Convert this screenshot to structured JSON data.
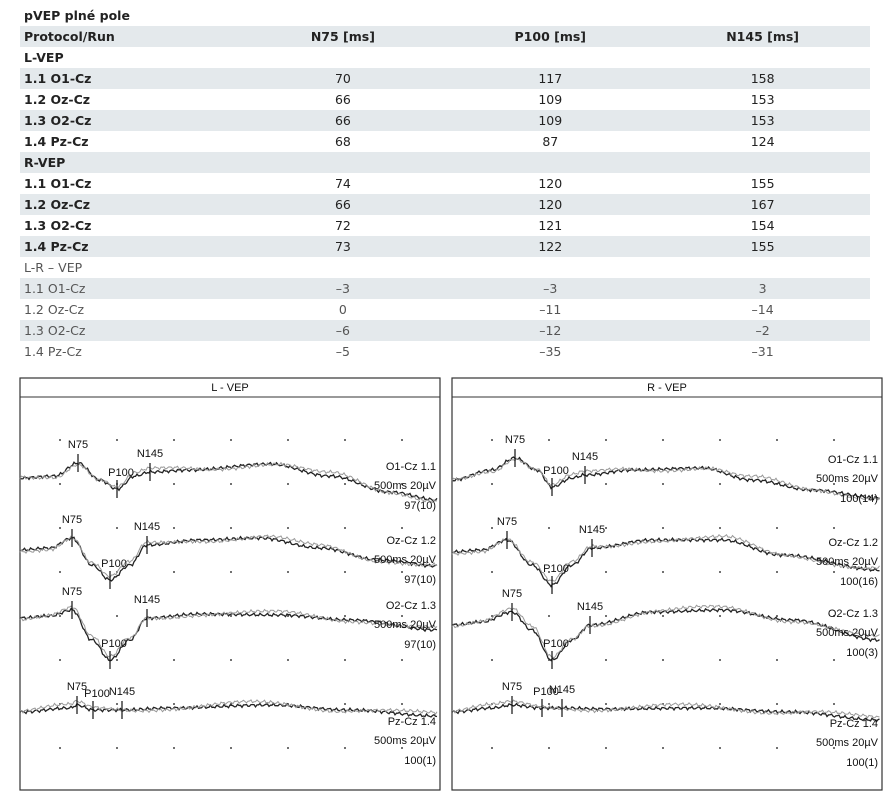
{
  "table": {
    "title": "pVEP plné pole",
    "header": [
      "Protocol/Run",
      "N75 [ms]",
      "P100 [ms]",
      "N145 [ms]"
    ],
    "sections": [
      {
        "label": "L-VEP",
        "rows": [
          [
            "1.1 O1-Cz",
            "70",
            "117",
            "158"
          ],
          [
            "1.2 Oz-Cz",
            "66",
            "109",
            "153"
          ],
          [
            "1.3 O2-Cz",
            "66",
            "109",
            "153"
          ],
          [
            "1.4 Pz-Cz",
            "68",
            "87",
            "124"
          ]
        ]
      },
      {
        "label": "R-VEP",
        "rows": [
          [
            "1.1 O1-Cz",
            "74",
            "120",
            "155"
          ],
          [
            "1.2 Oz-Cz",
            "66",
            "120",
            "167"
          ],
          [
            "1.3 O2-Cz",
            "72",
            "121",
            "154"
          ],
          [
            "1.4 Pz-Cz",
            "73",
            "122",
            "155"
          ]
        ]
      },
      {
        "label": "L-R – VEP",
        "rows": [
          [
            "1.1 O1-Cz",
            "–3",
            "–3",
            "3"
          ],
          [
            "1.2 Oz-Cz",
            "0",
            "–11",
            "–14"
          ],
          [
            "1.3 O2-Cz",
            "–6",
            "–12",
            "–2"
          ],
          [
            "1.4 Pz-Cz",
            "–5",
            "–35",
            "–31"
          ]
        ]
      }
    ]
  },
  "figure": {
    "panels": [
      {
        "title": "L - VEP",
        "traces": [
          {
            "label": "O1-Cz 1.1",
            "scale": "500ms 20µV",
            "count": "97(10)",
            "peaks": [
              "N75",
              "P100",
              "N145"
            ]
          },
          {
            "label": "Oz-Cz 1.2",
            "scale": "500ms 20µV",
            "count": "97(10)",
            "peaks": [
              "N75",
              "P100",
              "N145"
            ]
          },
          {
            "label": "O2-Cz 1.3",
            "scale": "500ms 20µV",
            "count": "97(10)",
            "peaks": [
              "N75",
              "P100",
              "N145"
            ]
          },
          {
            "label": "Pz-Cz 1.4",
            "scale": "500ms 20µV",
            "count": "100(1)",
            "peaks": [
              "N75",
              "P100",
              "N145"
            ]
          }
        ]
      },
      {
        "title": "R - VEP",
        "traces": [
          {
            "label": "O1-Cz 1.1",
            "scale": "500ms 20µV",
            "count": "100(14)",
            "peaks": [
              "N75",
              "P100",
              "N145"
            ]
          },
          {
            "label": "Oz-Cz 1.2",
            "scale": "500ms 20µV",
            "count": "100(16)",
            "peaks": [
              "N75",
              "P100",
              "N145"
            ]
          },
          {
            "label": "O2-Cz 1.3",
            "scale": "500ms 20µV",
            "count": "100(3)",
            "peaks": [
              "N75",
              "P100",
              "N145"
            ]
          },
          {
            "label": "Pz-Cz 1.4",
            "scale": "500ms 20µV",
            "count": "100(1)",
            "peaks": [
              "N75",
              "P100",
              "N145"
            ]
          }
        ]
      }
    ]
  }
}
